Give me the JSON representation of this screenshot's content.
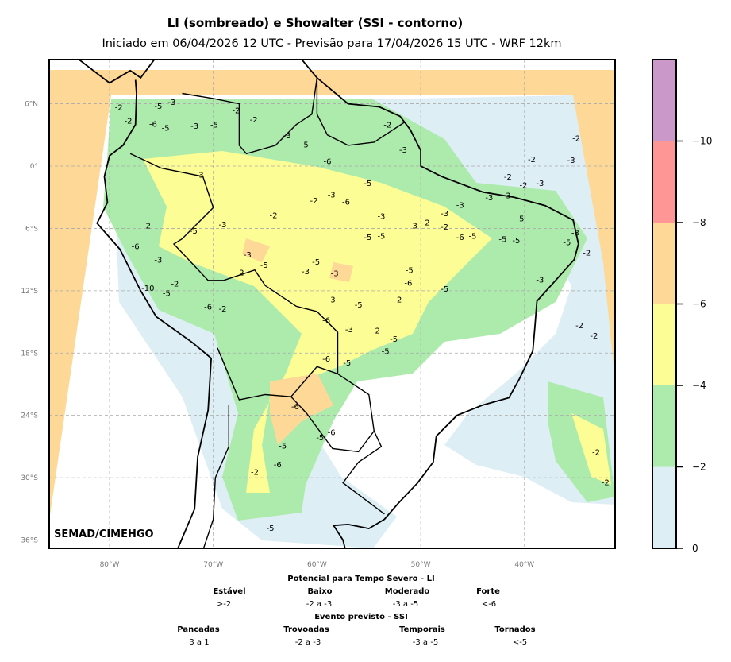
{
  "header": {
    "title": "LI (sombreado) e Showalter (SSI - contorno)",
    "subtitle": "Iniciado em 06/04/2026 12 UTC - Previsão para 17/04/2026 15 UTC - WRF 12km"
  },
  "map": {
    "credit": "SEMAD/CIMEHGO",
    "lat_ticks": [
      {
        "v": 6,
        "label": "6°N"
      },
      {
        "v": 0,
        "label": "0°"
      },
      {
        "v": -6,
        "label": "6°S"
      },
      {
        "v": -12,
        "label": "12°S"
      },
      {
        "v": -18,
        "label": "18°S"
      },
      {
        "v": -24,
        "label": "24°S"
      },
      {
        "v": -30,
        "label": "30°S"
      },
      {
        "v": -36,
        "label": "36°S"
      }
    ],
    "lon_ticks": [
      {
        "v": -80,
        "label": "80°W"
      },
      {
        "v": -70,
        "label": "70°W"
      },
      {
        "v": -60,
        "label": "60°W"
      },
      {
        "v": -50,
        "label": "50°W"
      },
      {
        "v": -40,
        "label": "40°W"
      }
    ],
    "ssi_contour_labels": [
      {
        "lon": -79.1,
        "lat": 5.7,
        "t": "-2"
      },
      {
        "lon": -75.3,
        "lat": 5.8,
        "t": "-5"
      },
      {
        "lon": -74.0,
        "lat": 6.2,
        "t": "-3"
      },
      {
        "lon": -78.2,
        "lat": 4.4,
        "t": "-2"
      },
      {
        "lon": -75.8,
        "lat": 4.1,
        "t": "-6"
      },
      {
        "lon": -74.6,
        "lat": 3.7,
        "t": "-5"
      },
      {
        "lon": -71.8,
        "lat": 3.9,
        "t": "-3"
      },
      {
        "lon": -69.9,
        "lat": 4.0,
        "t": "-5"
      },
      {
        "lon": -67.8,
        "lat": 5.4,
        "t": "-2"
      },
      {
        "lon": -66.1,
        "lat": 4.5,
        "t": "-2"
      },
      {
        "lon": -62.9,
        "lat": 3.0,
        "t": "-3"
      },
      {
        "lon": -61.2,
        "lat": 2.1,
        "t": "-5"
      },
      {
        "lon": -53.2,
        "lat": 4.0,
        "t": "-2"
      },
      {
        "lon": -51.7,
        "lat": 1.6,
        "t": "-3"
      },
      {
        "lon": -35.0,
        "lat": 2.7,
        "t": "-2"
      },
      {
        "lon": -39.3,
        "lat": 0.7,
        "t": "-2"
      },
      {
        "lon": -35.5,
        "lat": 0.6,
        "t": "-3"
      },
      {
        "lon": -41.6,
        "lat": -1.0,
        "t": "-2"
      },
      {
        "lon": -40.1,
        "lat": -1.8,
        "t": "-2"
      },
      {
        "lon": -38.5,
        "lat": -1.6,
        "t": "-3"
      },
      {
        "lon": -71.3,
        "lat": -0.8,
        "t": "-3"
      },
      {
        "lon": -59.0,
        "lat": 0.5,
        "t": "-6"
      },
      {
        "lon": -55.1,
        "lat": -1.6,
        "t": "-5"
      },
      {
        "lon": -58.6,
        "lat": -2.7,
        "t": "-3"
      },
      {
        "lon": -57.2,
        "lat": -3.4,
        "t": "-6"
      },
      {
        "lon": -60.3,
        "lat": -3.3,
        "t": "-2"
      },
      {
        "lon": -64.2,
        "lat": -4.7,
        "t": "-2"
      },
      {
        "lon": -69.1,
        "lat": -5.6,
        "t": "-3"
      },
      {
        "lon": -71.9,
        "lat": -6.2,
        "t": "-5"
      },
      {
        "lon": -76.4,
        "lat": -5.7,
        "t": "-2"
      },
      {
        "lon": -77.5,
        "lat": -7.7,
        "t": "-6"
      },
      {
        "lon": -75.3,
        "lat": -9.0,
        "t": "-3"
      },
      {
        "lon": -76.3,
        "lat": -11.7,
        "t": "-10"
      },
      {
        "lon": -73.7,
        "lat": -11.3,
        "t": "-2"
      },
      {
        "lon": -74.5,
        "lat": -12.2,
        "t": "-5"
      },
      {
        "lon": -70.5,
        "lat": -13.5,
        "t": "-6"
      },
      {
        "lon": -69.1,
        "lat": -13.7,
        "t": "-2"
      },
      {
        "lon": -66.7,
        "lat": -8.5,
        "t": "-3"
      },
      {
        "lon": -67.4,
        "lat": -10.2,
        "t": "-2"
      },
      {
        "lon": -65.1,
        "lat": -9.5,
        "t": "-5"
      },
      {
        "lon": -61.1,
        "lat": -10.1,
        "t": "-3"
      },
      {
        "lon": -58.3,
        "lat": -10.3,
        "t": "-3"
      },
      {
        "lon": -58.6,
        "lat": -12.8,
        "t": "-3"
      },
      {
        "lon": -60.1,
        "lat": -9.2,
        "t": "-5"
      },
      {
        "lon": -53.8,
        "lat": -4.8,
        "t": "-3"
      },
      {
        "lon": -55.1,
        "lat": -6.8,
        "t": "-5"
      },
      {
        "lon": -53.8,
        "lat": -6.7,
        "t": "-5"
      },
      {
        "lon": -50.7,
        "lat": -5.7,
        "t": "-3"
      },
      {
        "lon": -49.5,
        "lat": -5.4,
        "t": "-2"
      },
      {
        "lon": -47.7,
        "lat": -5.8,
        "t": "-2"
      },
      {
        "lon": -46.2,
        "lat": -3.7,
        "t": "-3"
      },
      {
        "lon": -47.7,
        "lat": -4.5,
        "t": "-3"
      },
      {
        "lon": -43.4,
        "lat": -3.0,
        "t": "-3"
      },
      {
        "lon": -41.7,
        "lat": -2.8,
        "t": "-3"
      },
      {
        "lon": -40.4,
        "lat": -5.0,
        "t": "-5"
      },
      {
        "lon": -45.0,
        "lat": -6.7,
        "t": "-5"
      },
      {
        "lon": -46.2,
        "lat": -6.8,
        "t": "-6"
      },
      {
        "lon": -42.1,
        "lat": -7.0,
        "t": "-5"
      },
      {
        "lon": -40.8,
        "lat": -7.1,
        "t": "-5"
      },
      {
        "lon": -35.9,
        "lat": -7.3,
        "t": "-5"
      },
      {
        "lon": -35.1,
        "lat": -6.4,
        "t": "-3"
      },
      {
        "lon": -34.0,
        "lat": -8.3,
        "t": "-2"
      },
      {
        "lon": -38.5,
        "lat": -10.9,
        "t": "-3"
      },
      {
        "lon": -51.1,
        "lat": -10.0,
        "t": "-5"
      },
      {
        "lon": -51.2,
        "lat": -11.2,
        "t": "-6"
      },
      {
        "lon": -47.7,
        "lat": -11.8,
        "t": "-5"
      },
      {
        "lon": -52.2,
        "lat": -12.8,
        "t": "-2"
      },
      {
        "lon": -56.0,
        "lat": -13.3,
        "t": "-5"
      },
      {
        "lon": -59.1,
        "lat": -14.8,
        "t": "-6"
      },
      {
        "lon": -56.9,
        "lat": -15.7,
        "t": "-3"
      },
      {
        "lon": -54.3,
        "lat": -15.8,
        "t": "-2"
      },
      {
        "lon": -52.6,
        "lat": -16.6,
        "t": "-5"
      },
      {
        "lon": -53.4,
        "lat": -17.8,
        "t": "-5"
      },
      {
        "lon": -59.1,
        "lat": -18.5,
        "t": "-6"
      },
      {
        "lon": -57.1,
        "lat": -18.9,
        "t": "-5"
      },
      {
        "lon": -62.1,
        "lat": -23.1,
        "t": "-6"
      },
      {
        "lon": -58.6,
        "lat": -25.6,
        "t": "-6"
      },
      {
        "lon": -59.7,
        "lat": -26.1,
        "t": "-5"
      },
      {
        "lon": -63.3,
        "lat": -26.9,
        "t": "-5"
      },
      {
        "lon": -63.8,
        "lat": -28.7,
        "t": "-6"
      },
      {
        "lon": -66.0,
        "lat": -29.4,
        "t": "-2"
      },
      {
        "lon": -64.5,
        "lat": -34.8,
        "t": "-5"
      },
      {
        "lon": -34.7,
        "lat": -15.3,
        "t": "-2"
      },
      {
        "lon": -33.3,
        "lat": -16.3,
        "t": "-2"
      },
      {
        "lon": -33.1,
        "lat": -27.5,
        "t": "-2"
      },
      {
        "lon": -32.2,
        "lat": -30.4,
        "t": "-2"
      }
    ]
  },
  "colorbar": {
    "bands": [
      {
        "from": 0,
        "to": -2,
        "color": "#ddeef5"
      },
      {
        "from": -2,
        "to": -4,
        "color": "#adebad"
      },
      {
        "from": -4,
        "to": -6,
        "color": "#fdfd96"
      },
      {
        "from": -6,
        "to": -8,
        "color": "#fdd896"
      },
      {
        "from": -8,
        "to": -10,
        "color": "#ff9696"
      },
      {
        "from": -10,
        "to": -12,
        "color": "#cb99c9"
      }
    ],
    "ticks": [
      "0",
      "−2",
      "−4",
      "−6",
      "−8",
      "−10"
    ]
  },
  "legend": {
    "li_title": "Potencial para Tempo Severo - LI",
    "li": [
      {
        "name": "Estável",
        "range": ">-2"
      },
      {
        "name": "Baixo",
        "range": "-2 a -3"
      },
      {
        "name": "Moderado",
        "range": "-3 a -5"
      },
      {
        "name": "Forte",
        "range": "<-6"
      }
    ],
    "ssi_title": "Evento previsto - SSI",
    "ssi": [
      {
        "name": "Pancadas",
        "range": "3 a 1"
      },
      {
        "name": "Trovoadas",
        "range": "-2 a -3"
      },
      {
        "name": "Temporais",
        "range": "-3 a -5"
      },
      {
        "name": "Tornados",
        "range": "<-5"
      }
    ]
  }
}
